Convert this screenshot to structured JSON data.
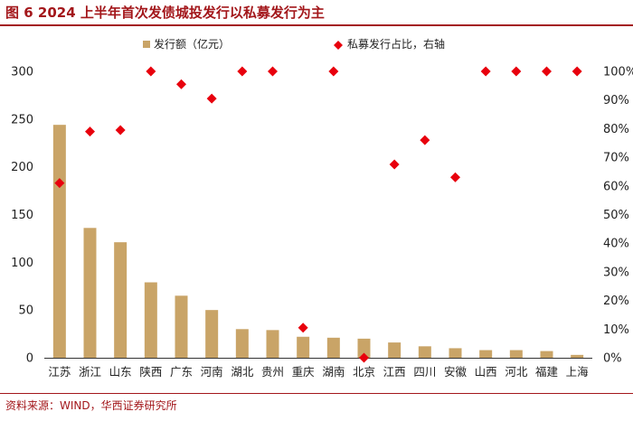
{
  "figure": {
    "title": "图 6  2024 上半年首次发债城投发行以私募发行为主",
    "source": "资料来源：WIND，华西证券研究所"
  },
  "colors": {
    "bar": "#c9a467",
    "marker": "#e8000d",
    "accent": "#a3171b"
  },
  "chart_data": {
    "type": "bar",
    "categories": [
      "江苏",
      "浙江",
      "山东",
      "陕西",
      "广东",
      "河南",
      "湖北",
      "贵州",
      "重庆",
      "湖南",
      "北京",
      "江西",
      "四川",
      "安徽",
      "山西",
      "河北",
      "福建",
      "上海"
    ],
    "series": [
      {
        "name": "发行额（亿元）",
        "type": "bar",
        "axis": "left",
        "values": [
          244,
          136,
          121,
          79,
          65,
          50,
          30,
          29,
          22,
          21,
          20,
          16,
          12,
          10,
          8,
          8,
          7,
          3
        ]
      },
      {
        "name": "私募发行占比，右轴",
        "type": "scatter",
        "axis": "right",
        "values": [
          61,
          79,
          79.5,
          100,
          95.5,
          90.5,
          100,
          100,
          10.5,
          100,
          0,
          67.5,
          76,
          63,
          100,
          100,
          100,
          100
        ]
      }
    ],
    "ylim_left": [
      0,
      300
    ],
    "yticks_left": [
      "0",
      "50",
      "100",
      "150",
      "200",
      "250",
      "300"
    ],
    "ylim_right": [
      0,
      100
    ],
    "yticks_right": [
      "0%",
      "10%",
      "20%",
      "30%",
      "40%",
      "50%",
      "60%",
      "70%",
      "80%",
      "90%",
      "100%"
    ],
    "legend_position": "top"
  }
}
